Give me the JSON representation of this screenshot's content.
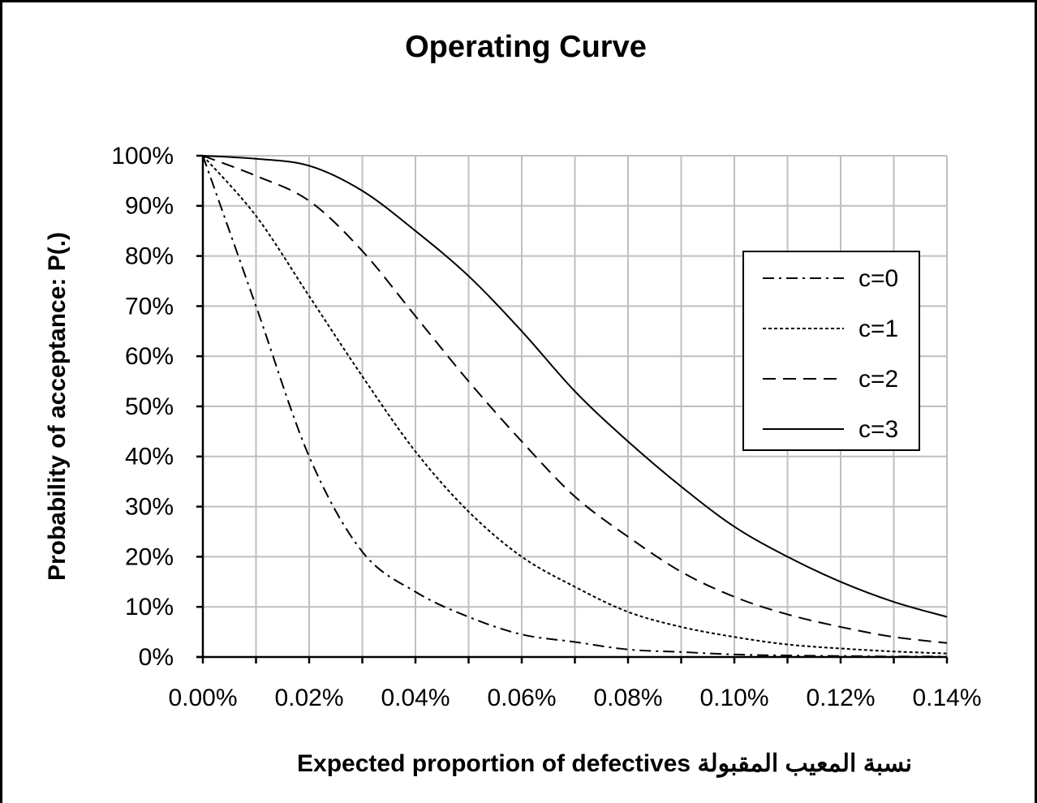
{
  "chart_data": {
    "type": "line",
    "title": "Operating Curve",
    "x_label": "Expected proportion of defectives  نسبة المعيب المقبولة",
    "y_label": "Probability of acceptance: P(.)",
    "x": [
      0,
      0.01,
      0.02,
      0.03,
      0.04,
      0.05,
      0.06,
      0.07,
      0.08,
      0.09,
      0.1,
      0.11,
      0.12,
      0.13,
      0.14
    ],
    "series": [
      {
        "name": "c=0",
        "color": "#000000",
        "dash": "dash-dot",
        "values": [
          100,
          70,
          40,
          21,
          13,
          8,
          4.5,
          3,
          1.5,
          1,
          0.5,
          0.3,
          0.2,
          0.1,
          0.1
        ]
      },
      {
        "name": "c=1",
        "color": "#000000",
        "dash": "dotted",
        "values": [
          100,
          88,
          72,
          56,
          41,
          29,
          20,
          14,
          9,
          6,
          4,
          2.5,
          1.7,
          1.1,
          0.7
        ]
      },
      {
        "name": "c=2",
        "color": "#000000",
        "dash": "dashed",
        "values": [
          100,
          96,
          91,
          81,
          68,
          55,
          43,
          32,
          24,
          17,
          12,
          8.5,
          6,
          4,
          2.8
        ]
      },
      {
        "name": "c=3",
        "color": "#000000",
        "dash": "solid",
        "values": [
          100,
          99.4,
          98,
          93,
          85,
          76,
          65,
          53,
          43,
          34,
          26,
          20,
          15,
          11,
          8
        ]
      }
    ],
    "xlim": [
      0,
      0.14
    ],
    "xticks": [
      {
        "value": 0,
        "label": "0.00%"
      },
      {
        "value": 0.02,
        "label": "0.02%"
      },
      {
        "value": 0.04,
        "label": "0.04%"
      },
      {
        "value": 0.06,
        "label": "0.06%"
      },
      {
        "value": 0.08,
        "label": "0.08%"
      },
      {
        "value": 0.1,
        "label": "0.10%"
      },
      {
        "value": 0.12,
        "label": "0.12%"
      },
      {
        "value": 0.14,
        "label": "0.14%"
      }
    ],
    "x_minor_ticks": [
      0.01,
      0.03,
      0.05,
      0.07,
      0.09,
      0.11,
      0.13
    ],
    "ylim": [
      0,
      100
    ],
    "yticks": [
      {
        "value": 0,
        "label": "0%"
      },
      {
        "value": 10,
        "label": "10%"
      },
      {
        "value": 20,
        "label": "20%"
      },
      {
        "value": 30,
        "label": "30%"
      },
      {
        "value": 40,
        "label": "40%"
      },
      {
        "value": 50,
        "label": "50%"
      },
      {
        "value": 60,
        "label": "60%"
      },
      {
        "value": 70,
        "label": "70%"
      },
      {
        "value": 80,
        "label": "80%"
      },
      {
        "value": 90,
        "label": "90%"
      },
      {
        "value": 100,
        "label": "100%"
      }
    ],
    "grid": true,
    "legend": "right"
  }
}
